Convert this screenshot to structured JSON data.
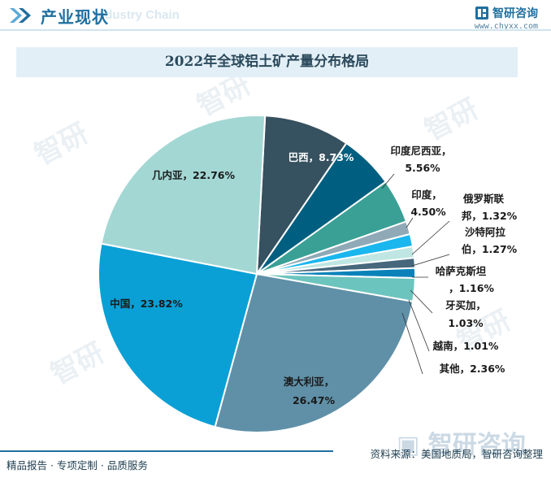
{
  "header": {
    "title": "产业现状",
    "watermark": "ndustry Chain"
  },
  "brand": {
    "name": "智研咨询",
    "url": "www.chyxx.com",
    "color": "#1f6f9f"
  },
  "chart_data": {
    "type": "pie",
    "title": "2022年全球铝土矿产量分布格局",
    "start_angle_deg": 87,
    "direction": "clockwise",
    "slices": [
      {
        "label": "巴西",
        "value": 8.73,
        "display": "巴西，8.73%",
        "color": "#36515f",
        "text_color": "#ffffff"
      },
      {
        "label": "印度尼西亚",
        "value": 5.56,
        "display": "印度尼西亚，5.56%",
        "color": "#005f80",
        "text_color": "#1a1a1a"
      },
      {
        "label": "印度",
        "value": 4.5,
        "display": "印度，4.50%",
        "color": "#3aa096",
        "text_color": "#1a1a1a"
      },
      {
        "label": "俄罗斯联邦",
        "value": 1.32,
        "display": "俄罗斯联邦，1.32%",
        "color": "#8fa9b7",
        "text_color": "#1a1a1a"
      },
      {
        "label": "沙特阿拉伯",
        "value": 1.27,
        "display": "沙特阿拉伯，1.27%",
        "color": "#1ab6ee",
        "text_color": "#1a1a1a"
      },
      {
        "label": "哈萨克斯坦",
        "value": 1.16,
        "display": "哈萨克斯坦，1.16%",
        "color": "#bfe6e2",
        "text_color": "#1a1a1a"
      },
      {
        "label": "牙买加",
        "value": 1.03,
        "display": "牙买加，1.03%",
        "color": "#46677c",
        "text_color": "#1a1a1a"
      },
      {
        "label": "越南",
        "value": 1.01,
        "display": "越南，1.01%",
        "color": "#0a82b9",
        "text_color": "#1a1a1a"
      },
      {
        "label": "其他",
        "value": 2.36,
        "display": "其他，2.36%",
        "color": "#6cc4be",
        "text_color": "#1a1a1a"
      },
      {
        "label": "澳大利亚",
        "value": 26.47,
        "display": "澳大利亚，26.47%",
        "color": "#5f90a8",
        "text_color": "#1a1a1a"
      },
      {
        "label": "中国",
        "value": 23.82,
        "display": "中国，23.82%",
        "color": "#0aa0d6",
        "text_color": "#1a1a1a"
      },
      {
        "label": "几内亚",
        "value": 22.76,
        "display": "几内亚，22.76%",
        "color": "#a3d7d4",
        "text_color": "#1a1a1a"
      }
    ]
  },
  "footer": {
    "left": "精品报告 · 专项定制 · 品质服务",
    "source": "资料来源：美国地质局，智研咨询整理"
  }
}
